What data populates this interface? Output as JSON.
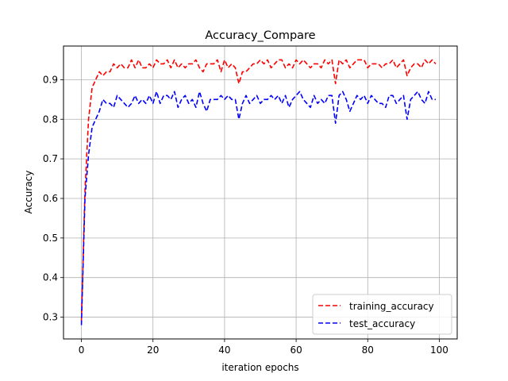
{
  "chart_data": {
    "type": "line",
    "title": "Accuracy_Compare",
    "xlabel": "iteration epochs",
    "ylabel": "Accuracy",
    "xlim": [
      -5,
      105
    ],
    "ylim": [
      0.245,
      0.985
    ],
    "x_ticks": [
      0,
      20,
      40,
      60,
      80,
      100
    ],
    "y_ticks": [
      0.3,
      0.4,
      0.5,
      0.6,
      0.7,
      0.8,
      0.9
    ],
    "grid": true,
    "legend_position": "lower-right",
    "series": [
      {
        "name": "training_accuracy",
        "color": "#ff0000",
        "style": "dashed",
        "x": [
          0,
          1,
          2,
          3,
          4,
          5,
          6,
          7,
          8,
          9,
          10,
          11,
          12,
          13,
          14,
          15,
          16,
          17,
          18,
          19,
          20,
          21,
          22,
          23,
          24,
          25,
          26,
          27,
          28,
          29,
          30,
          31,
          32,
          33,
          34,
          35,
          36,
          37,
          38,
          39,
          40,
          41,
          42,
          43,
          44,
          45,
          46,
          47,
          48,
          49,
          50,
          51,
          52,
          53,
          54,
          55,
          56,
          57,
          58,
          59,
          60,
          61,
          62,
          63,
          64,
          65,
          66,
          67,
          68,
          69,
          70,
          71,
          72,
          73,
          74,
          75,
          76,
          77,
          78,
          79,
          80,
          81,
          82,
          83,
          84,
          85,
          86,
          87,
          88,
          89,
          90,
          91,
          92,
          93,
          94,
          95,
          96,
          97,
          98,
          99
        ],
        "values": [
          0.29,
          0.62,
          0.8,
          0.88,
          0.9,
          0.92,
          0.91,
          0.92,
          0.92,
          0.94,
          0.93,
          0.94,
          0.93,
          0.93,
          0.95,
          0.93,
          0.95,
          0.93,
          0.93,
          0.94,
          0.93,
          0.95,
          0.94,
          0.94,
          0.95,
          0.93,
          0.95,
          0.93,
          0.94,
          0.93,
          0.94,
          0.94,
          0.95,
          0.93,
          0.92,
          0.94,
          0.94,
          0.94,
          0.95,
          0.92,
          0.95,
          0.93,
          0.94,
          0.93,
          0.89,
          0.92,
          0.92,
          0.93,
          0.94,
          0.94,
          0.95,
          0.94,
          0.95,
          0.93,
          0.94,
          0.95,
          0.95,
          0.93,
          0.94,
          0.93,
          0.95,
          0.94,
          0.95,
          0.94,
          0.93,
          0.94,
          0.94,
          0.93,
          0.95,
          0.94,
          0.95,
          0.89,
          0.95,
          0.94,
          0.95,
          0.93,
          0.94,
          0.95,
          0.95,
          0.95,
          0.93,
          0.94,
          0.94,
          0.94,
          0.93,
          0.94,
          0.94,
          0.95,
          0.93,
          0.94,
          0.95,
          0.91,
          0.93,
          0.94,
          0.94,
          0.93,
          0.95,
          0.94,
          0.95,
          0.94
        ]
      },
      {
        "name": "test_accuracy",
        "color": "#0000ff",
        "style": "dashed",
        "x": [
          0,
          1,
          2,
          3,
          4,
          5,
          6,
          7,
          8,
          9,
          10,
          11,
          12,
          13,
          14,
          15,
          16,
          17,
          18,
          19,
          20,
          21,
          22,
          23,
          24,
          25,
          26,
          27,
          28,
          29,
          30,
          31,
          32,
          33,
          34,
          35,
          36,
          37,
          38,
          39,
          40,
          41,
          42,
          43,
          44,
          45,
          46,
          47,
          48,
          49,
          50,
          51,
          52,
          53,
          54,
          55,
          56,
          57,
          58,
          59,
          60,
          61,
          62,
          63,
          64,
          65,
          66,
          67,
          68,
          69,
          70,
          71,
          72,
          73,
          74,
          75,
          76,
          77,
          78,
          79,
          80,
          81,
          82,
          83,
          84,
          85,
          86,
          87,
          88,
          89,
          90,
          91,
          92,
          93,
          94,
          95,
          96,
          97,
          98,
          99
        ],
        "values": [
          0.28,
          0.6,
          0.71,
          0.78,
          0.8,
          0.82,
          0.85,
          0.84,
          0.84,
          0.83,
          0.86,
          0.85,
          0.84,
          0.83,
          0.84,
          0.86,
          0.84,
          0.85,
          0.84,
          0.86,
          0.84,
          0.87,
          0.84,
          0.86,
          0.86,
          0.85,
          0.87,
          0.83,
          0.85,
          0.86,
          0.84,
          0.85,
          0.83,
          0.87,
          0.84,
          0.82,
          0.85,
          0.85,
          0.85,
          0.86,
          0.85,
          0.86,
          0.85,
          0.85,
          0.8,
          0.84,
          0.86,
          0.84,
          0.85,
          0.86,
          0.84,
          0.85,
          0.85,
          0.86,
          0.85,
          0.86,
          0.84,
          0.86,
          0.83,
          0.85,
          0.86,
          0.87,
          0.85,
          0.84,
          0.83,
          0.86,
          0.84,
          0.85,
          0.84,
          0.86,
          0.86,
          0.79,
          0.86,
          0.87,
          0.85,
          0.82,
          0.84,
          0.86,
          0.85,
          0.86,
          0.84,
          0.86,
          0.85,
          0.84,
          0.84,
          0.83,
          0.86,
          0.86,
          0.84,
          0.85,
          0.86,
          0.8,
          0.85,
          0.86,
          0.87,
          0.85,
          0.84,
          0.87,
          0.85,
          0.85
        ]
      }
    ]
  }
}
